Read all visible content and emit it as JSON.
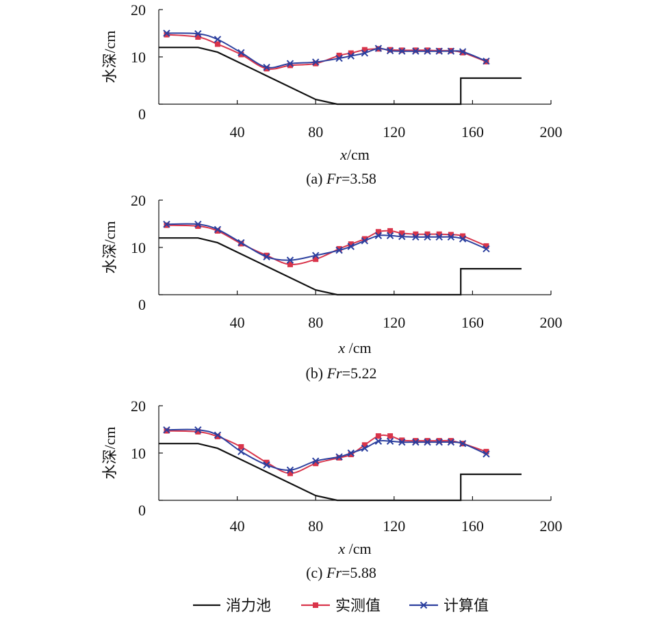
{
  "chart_data": [
    {
      "type": "line",
      "caption_prefix": "(a) ",
      "caption_italic": "Fr",
      "caption_suffix": "=3.58",
      "xlabel_italic": "x",
      "xlabel_unit": "/cm",
      "ylabel": "水深/cm",
      "xlim": [
        0,
        200
      ],
      "ylim": [
        0,
        20
      ],
      "xticks": [
        "40",
        "80",
        "120",
        "160",
        "200"
      ],
      "yticks": [
        "0",
        "10",
        "20"
      ],
      "series": [
        {
          "name": "消力池",
          "x": [
            0,
            20,
            30,
            80,
            91,
            154,
            154,
            185
          ],
          "y": [
            12,
            12,
            11,
            1,
            0,
            0,
            5.5,
            5.5
          ]
        },
        {
          "name": "实测值",
          "x": [
            4,
            20,
            30,
            42,
            55,
            67,
            80,
            92,
            98,
            105,
            112,
            118,
            124,
            131,
            137,
            143,
            149,
            155,
            167
          ],
          "y": [
            14.7,
            14.2,
            12.7,
            10.5,
            7.5,
            8.2,
            8.6,
            10.3,
            10.8,
            11.5,
            11.7,
            11.5,
            11.4,
            11.4,
            11.4,
            11.3,
            11.3,
            10.9,
            9.0
          ]
        },
        {
          "name": "计算值",
          "x": [
            4,
            20,
            30,
            42,
            55,
            67,
            80,
            92,
            98,
            105,
            112,
            118,
            124,
            131,
            137,
            143,
            149,
            155,
            167
          ],
          "y": [
            15.0,
            14.9,
            13.7,
            10.9,
            7.8,
            8.6,
            8.9,
            9.7,
            10.2,
            10.8,
            11.8,
            11.3,
            11.2,
            11.2,
            11.2,
            11.2,
            11.2,
            11.1,
            9.1
          ]
        }
      ]
    },
    {
      "type": "line",
      "caption_prefix": "(b) ",
      "caption_italic": "Fr",
      "caption_suffix": "=5.22",
      "xlabel_italic": "x",
      "xlabel_unit": " /cm",
      "ylabel": "水深/cm",
      "xlim": [
        0,
        200
      ],
      "ylim": [
        0,
        20
      ],
      "xticks": [
        "40",
        "80",
        "120",
        "160",
        "200"
      ],
      "yticks": [
        "0",
        "10",
        "20"
      ],
      "series": [
        {
          "name": "消力池",
          "x": [
            0,
            20,
            30,
            80,
            91,
            154,
            154,
            185
          ],
          "y": [
            12,
            12,
            11,
            1,
            0,
            0,
            5.5,
            5.5
          ]
        },
        {
          "name": "实测值",
          "x": [
            4,
            20,
            30,
            42,
            55,
            67,
            80,
            92,
            98,
            105,
            112,
            118,
            124,
            131,
            137,
            143,
            149,
            155,
            167
          ],
          "y": [
            14.7,
            14.5,
            13.5,
            10.8,
            8.3,
            6.4,
            7.5,
            9.7,
            10.7,
            11.8,
            13.3,
            13.5,
            13.0,
            12.8,
            12.8,
            12.8,
            12.7,
            12.4,
            10.3
          ]
        },
        {
          "name": "计算值",
          "x": [
            4,
            20,
            30,
            42,
            55,
            67,
            80,
            92,
            98,
            105,
            112,
            118,
            124,
            131,
            137,
            143,
            149,
            155,
            167
          ],
          "y": [
            14.9,
            14.9,
            13.8,
            11.0,
            8.0,
            7.3,
            8.3,
            9.4,
            10.2,
            11.4,
            12.5,
            12.5,
            12.3,
            12.2,
            12.2,
            12.2,
            12.2,
            11.8,
            9.7
          ]
        }
      ]
    },
    {
      "type": "line",
      "caption_prefix": "(c) ",
      "caption_italic": "Fr",
      "caption_suffix": "=5.88",
      "xlabel_italic": "x",
      "xlabel_unit": " /cm",
      "ylabel": "水深/cm",
      "xlim": [
        0,
        200
      ],
      "ylim": [
        0,
        20
      ],
      "xticks": [
        "40",
        "80",
        "120",
        "160",
        "200"
      ],
      "yticks": [
        "0",
        "10",
        "20"
      ],
      "series": [
        {
          "name": "消力池",
          "x": [
            0,
            20,
            30,
            80,
            91,
            154,
            154,
            185
          ],
          "y": [
            12,
            12,
            11,
            1,
            0,
            0,
            5.5,
            5.5
          ]
        },
        {
          "name": "实测值",
          "x": [
            4,
            20,
            30,
            42,
            55,
            67,
            80,
            92,
            98,
            105,
            112,
            118,
            124,
            131,
            137,
            143,
            149,
            155,
            167
          ],
          "y": [
            14.7,
            14.5,
            13.5,
            11.3,
            8.0,
            5.7,
            7.8,
            9.0,
            9.7,
            11.7,
            13.6,
            13.6,
            12.7,
            12.6,
            12.6,
            12.6,
            12.6,
            12.0,
            10.3
          ]
        },
        {
          "name": "计算值",
          "x": [
            4,
            20,
            30,
            42,
            55,
            67,
            80,
            92,
            98,
            105,
            112,
            118,
            124,
            131,
            137,
            143,
            149,
            155,
            167
          ],
          "y": [
            14.9,
            14.9,
            13.8,
            10.3,
            7.5,
            6.4,
            8.3,
            9.2,
            10.0,
            11.0,
            12.5,
            12.5,
            12.3,
            12.3,
            12.3,
            12.3,
            12.3,
            12.0,
            9.8
          ]
        }
      ]
    }
  ],
  "legend": [
    {
      "label": "消力池",
      "color": "#111111",
      "marker": "none"
    },
    {
      "label": "实测值",
      "color": "#d9344a",
      "marker": "square"
    },
    {
      "label": "计算值",
      "color": "#2b3f9e",
      "marker": "x"
    }
  ]
}
